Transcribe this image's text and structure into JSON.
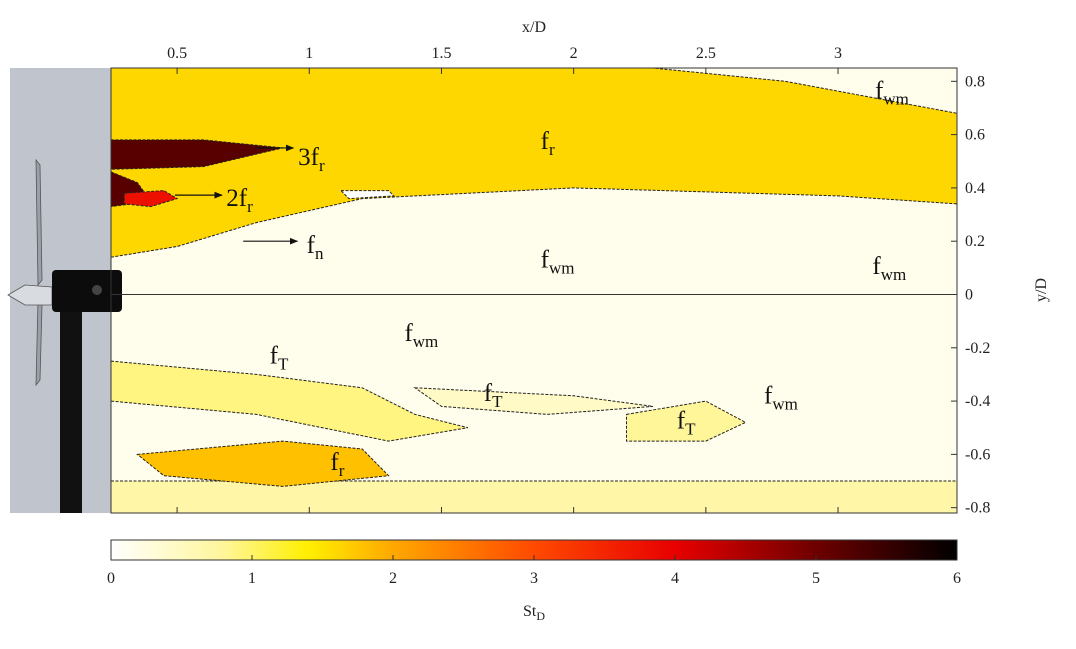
{
  "chart_data": {
    "type": "contour",
    "xlabel": "x/D",
    "ylabel": "y/D",
    "xlim": [
      0.25,
      3.45
    ],
    "xticks": [
      0.5,
      1,
      1.5,
      2,
      2.5,
      3
    ],
    "ylim": [
      -0.82,
      0.85
    ],
    "yticks": [
      -0.8,
      -0.6,
      -0.4,
      -0.2,
      0,
      0.2,
      0.4,
      0.6,
      0.8
    ],
    "background_value": 0.15,
    "colormap": [
      {
        "value": 0,
        "color": "#ffffff"
      },
      {
        "value": 0.8,
        "color": "#fff69a"
      },
      {
        "value": 1.4,
        "color": "#ffef00"
      },
      {
        "value": 2,
        "color": "#ffa800"
      },
      {
        "value": 3,
        "color": "#ff4a00"
      },
      {
        "value": 4,
        "color": "#e80000"
      },
      {
        "value": 5,
        "color": "#6e0000"
      },
      {
        "value": 6,
        "color": "#000000"
      }
    ],
    "regions": [
      {
        "value": 1.6,
        "x": [
          0.25,
          2.3,
          2.8,
          3.45,
          3.45,
          3.0,
          2.0,
          1.2,
          0.8,
          0.5,
          0.25
        ],
        "y": [
          0.85,
          0.85,
          0.8,
          0.68,
          0.34,
          0.37,
          0.4,
          0.36,
          0.27,
          0.18,
          0.14
        ]
      },
      {
        "value": 5.2,
        "x": [
          0.25,
          0.6,
          0.9,
          0.6,
          0.25
        ],
        "y": [
          0.58,
          0.58,
          0.55,
          0.48,
          0.47
        ]
      },
      {
        "value": 5.2,
        "x": [
          0.25,
          0.35,
          0.4,
          0.25
        ],
        "y": [
          0.46,
          0.42,
          0.35,
          0.33
        ]
      },
      {
        "value": 3.8,
        "x": [
          0.3,
          0.45,
          0.5,
          0.4,
          0.3
        ],
        "y": [
          0.38,
          0.39,
          0.36,
          0.33,
          0.34
        ]
      },
      {
        "value": 0,
        "x": [
          1.12,
          1.3,
          1.32,
          1.15
        ],
        "y": [
          0.39,
          0.39,
          0.37,
          0.36
        ]
      },
      {
        "value": 0.9,
        "x": [
          0.25,
          0.8,
          1.2,
          1.4,
          1.6,
          1.3,
          0.8,
          0.25
        ],
        "y": [
          -0.25,
          -0.3,
          -0.35,
          -0.45,
          -0.5,
          -0.55,
          -0.45,
          -0.4
        ]
      },
      {
        "value": 0.45,
        "x": [
          1.4,
          2.0,
          2.3,
          1.9,
          1.5
        ],
        "y": [
          -0.35,
          -0.38,
          -0.42,
          -0.45,
          -0.42
        ]
      },
      {
        "value": 0.7,
        "x": [
          0.25,
          3.45,
          3.45,
          0.25
        ],
        "y": [
          -0.7,
          -0.7,
          -0.82,
          -0.82
        ]
      },
      {
        "value": 1.8,
        "x": [
          0.35,
          0.9,
          1.2,
          1.3,
          0.9,
          0.45
        ],
        "y": [
          -0.6,
          -0.55,
          -0.58,
          -0.68,
          -0.72,
          -0.68
        ]
      },
      {
        "value": 0.8,
        "x": [
          2.2,
          2.5,
          2.65,
          2.5,
          2.2
        ],
        "y": [
          -0.45,
          -0.4,
          -0.48,
          -0.55,
          -0.55
        ]
      }
    ],
    "annotations": [
      {
        "text": "f",
        "sub": "r",
        "x": 1.875,
        "y": 0.58
      },
      {
        "text": "3f",
        "sub": "r",
        "x": 0.958,
        "y": 0.52,
        "arrow_from": [
          0.795,
          0.55
        ],
        "arrow_to": [
          0.94,
          0.55
        ]
      },
      {
        "text": "2f",
        "sub": "r",
        "x": 0.686,
        "y": 0.366,
        "arrow_from": [
          0.492,
          0.373
        ],
        "arrow_to": [
          0.67,
          0.373
        ]
      },
      {
        "text": "f",
        "sub": "n",
        "x": 0.99,
        "y": 0.19,
        "arrow_from": [
          0.75,
          0.2
        ],
        "arrow_to": [
          0.955,
          0.2
        ]
      },
      {
        "text": "f",
        "sub": "wm",
        "x": 3.14,
        "y": 0.77
      },
      {
        "text": "f",
        "sub": "wm",
        "x": 1.875,
        "y": 0.135
      },
      {
        "text": "f",
        "sub": "wm",
        "x": 3.13,
        "y": 0.11
      },
      {
        "text": "f",
        "sub": "wm",
        "x": 1.36,
        "y": -0.14
      },
      {
        "text": "f",
        "sub": "T",
        "x": 0.85,
        "y": -0.225
      },
      {
        "text": "f",
        "sub": "T",
        "x": 1.66,
        "y": -0.365
      },
      {
        "text": "f",
        "sub": "T",
        "x": 2.39,
        "y": -0.47
      },
      {
        "text": "f",
        "sub": "wm",
        "x": 2.72,
        "y": -0.375
      },
      {
        "text": "f",
        "sub": "r",
        "x": 1.08,
        "y": -0.625
      }
    ],
    "colorbar": {
      "label": "St",
      "label_sub": "D",
      "clim": [
        0,
        6
      ],
      "ticks": [
        0,
        1,
        2,
        3,
        4,
        5,
        6
      ]
    }
  }
}
